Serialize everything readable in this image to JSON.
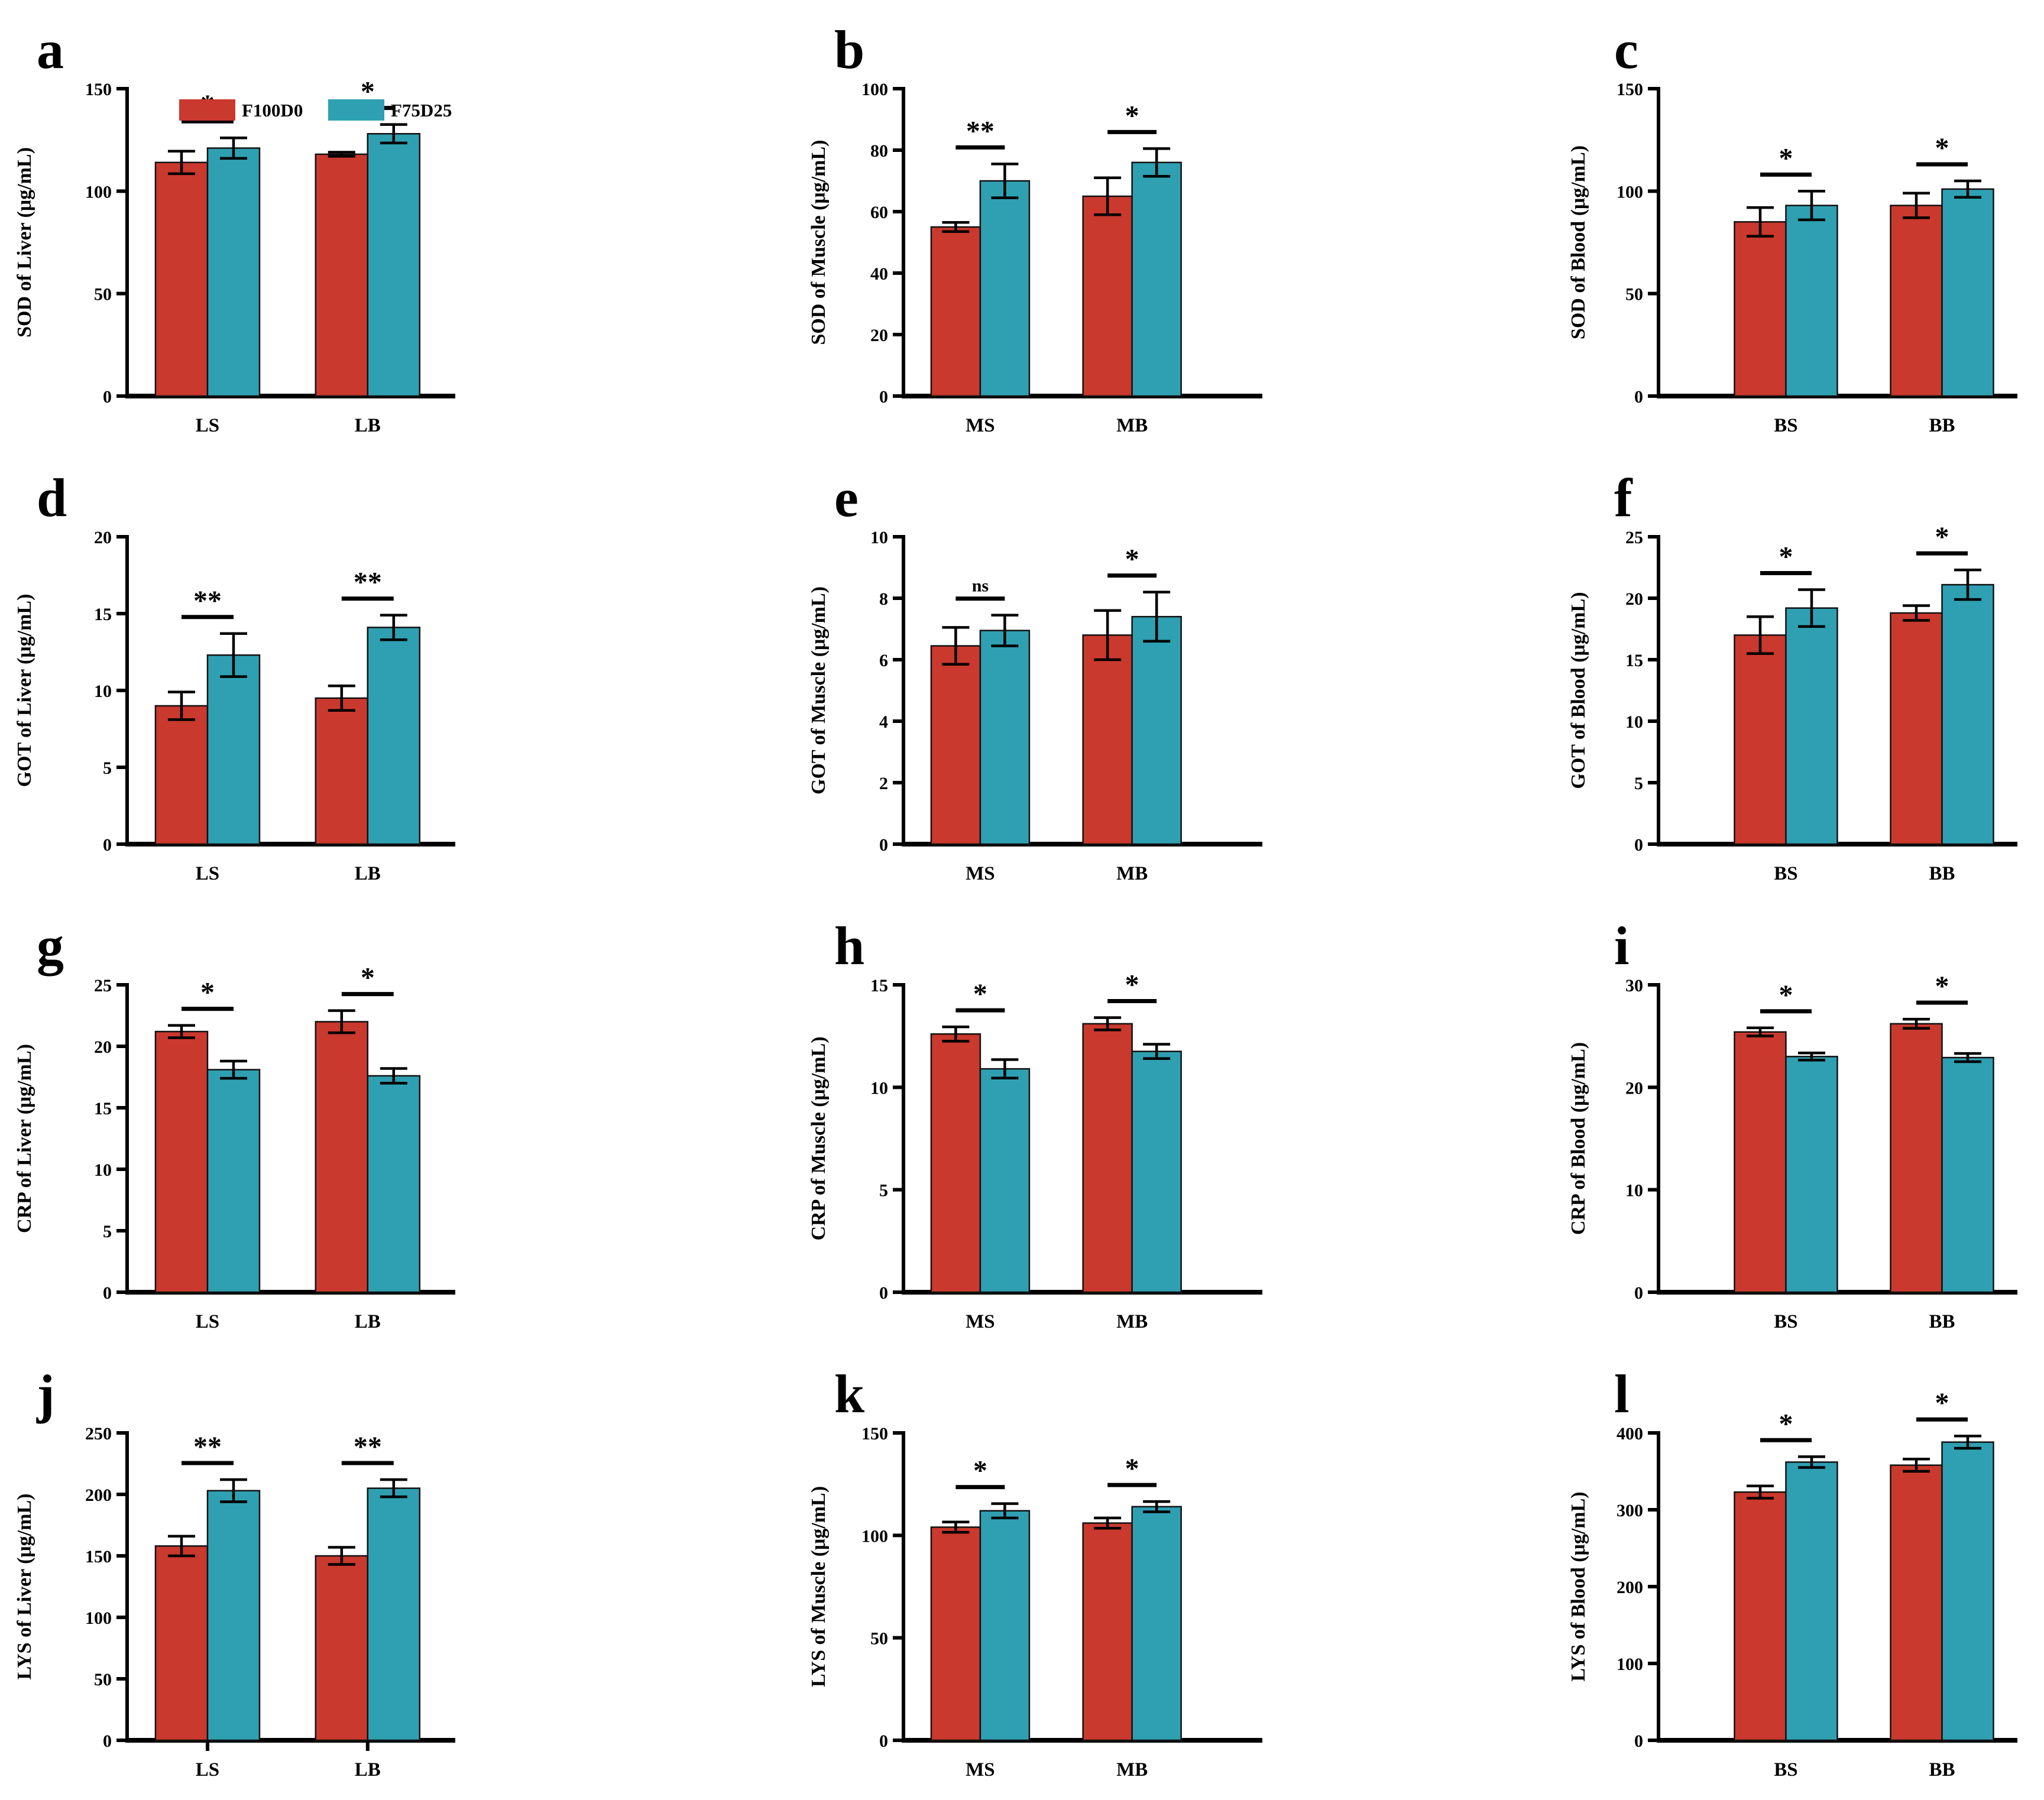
{
  "figure_title": "",
  "legend": {
    "entries": [
      {
        "label": "F100D0",
        "color": "#CA392D"
      },
      {
        "label": "F75D25",
        "color": "#2FA0B2"
      }
    ]
  },
  "colors": {
    "bar_red": "#CA392D",
    "bar_teal": "#2FA0B2",
    "axis": "#000000"
  },
  "chart_data": [
    {
      "panel": "a",
      "type": "bar",
      "ylabel": "SOD of Liver (μg/mL)",
      "ylim": [
        0,
        150
      ],
      "yticks": [
        0,
        50,
        100,
        150
      ],
      "categories": [
        "LS",
        "LB"
      ],
      "legend": true,
      "category_axis_ticks": false,
      "series": [
        {
          "name": "F100D0",
          "color": "#CA392D",
          "values": [
            114,
            118
          ],
          "errors": [
            5.5,
            1
          ]
        },
        {
          "name": "F75D25",
          "color": "#2FA0B2",
          "values": [
            121,
            128
          ],
          "errors": [
            5,
            4.5
          ]
        }
      ],
      "significance": [
        "*",
        "*"
      ]
    },
    {
      "panel": "b",
      "type": "bar",
      "ylabel": "SOD of Muscle (μg/mL)",
      "ylim": [
        0,
        100
      ],
      "yticks": [
        0,
        20,
        40,
        60,
        80,
        100
      ],
      "categories": [
        "MS",
        "MB"
      ],
      "legend": false,
      "category_axis_ticks": false,
      "series": [
        {
          "name": "F100D0",
          "color": "#CA392D",
          "values": [
            55,
            65
          ],
          "errors": [
            1.5,
            6
          ]
        },
        {
          "name": "F75D25",
          "color": "#2FA0B2",
          "values": [
            70,
            76
          ],
          "errors": [
            5.5,
            4.5
          ]
        }
      ],
      "significance": [
        "**",
        "*"
      ]
    },
    {
      "panel": "c",
      "type": "bar",
      "ylabel": "SOD of Blood (μg/mL)",
      "ylim": [
        0,
        150
      ],
      "yticks": [
        0,
        50,
        100,
        150
      ],
      "categories": [
        "BS",
        "BB"
      ],
      "legend": false,
      "category_axis_ticks": false,
      "series": [
        {
          "name": "F100D0",
          "color": "#CA392D",
          "values": [
            85,
            93
          ],
          "errors": [
            7,
            6
          ]
        },
        {
          "name": "F75D25",
          "color": "#2FA0B2",
          "values": [
            93,
            101
          ],
          "errors": [
            7,
            4
          ]
        }
      ],
      "significance": [
        "*",
        "*"
      ]
    },
    {
      "panel": "d",
      "type": "bar",
      "ylabel": "GOT of Liver (μg/mL)",
      "ylim": [
        0,
        20
      ],
      "yticks": [
        0,
        5,
        10,
        15,
        20
      ],
      "categories": [
        "LS",
        "LB"
      ],
      "legend": false,
      "category_axis_ticks": false,
      "series": [
        {
          "name": "F100D0",
          "color": "#CA392D",
          "values": [
            9,
            9.5
          ],
          "errors": [
            0.9,
            0.8
          ]
        },
        {
          "name": "F75D25",
          "color": "#2FA0B2",
          "values": [
            12.3,
            14.1
          ],
          "errors": [
            1.4,
            0.8
          ]
        }
      ],
      "significance": [
        "**",
        "**"
      ]
    },
    {
      "panel": "e",
      "type": "bar",
      "ylabel": "GOT of Muscle (μg/mL)",
      "ylim": [
        0,
        10
      ],
      "yticks": [
        0,
        2,
        4,
        6,
        8,
        10
      ],
      "categories": [
        "MS",
        "MB"
      ],
      "legend": false,
      "category_axis_ticks": false,
      "series": [
        {
          "name": "F100D0",
          "color": "#CA392D",
          "values": [
            6.45,
            6.8
          ],
          "errors": [
            0.6,
            0.8
          ]
        },
        {
          "name": "F75D25",
          "color": "#2FA0B2",
          "values": [
            6.95,
            7.4
          ],
          "errors": [
            0.5,
            0.8
          ]
        }
      ],
      "significance": [
        "ns",
        "*"
      ]
    },
    {
      "panel": "f",
      "type": "bar",
      "ylabel": "GOT of Blood (μg/mL)",
      "ylim": [
        0,
        25
      ],
      "yticks": [
        0,
        5,
        10,
        15,
        20,
        25
      ],
      "categories": [
        "BS",
        "BB"
      ],
      "legend": false,
      "category_axis_ticks": false,
      "series": [
        {
          "name": "F100D0",
          "color": "#CA392D",
          "values": [
            17,
            18.8
          ],
          "errors": [
            1.5,
            0.6
          ]
        },
        {
          "name": "F75D25",
          "color": "#2FA0B2",
          "values": [
            19.2,
            21.1
          ],
          "errors": [
            1.5,
            1.2
          ]
        }
      ],
      "significance": [
        "*",
        "*"
      ]
    },
    {
      "panel": "g",
      "type": "bar",
      "ylabel": "CRP of Liver (μg/mL)",
      "ylim": [
        0,
        25
      ],
      "yticks": [
        0,
        5,
        10,
        15,
        20,
        25
      ],
      "categories": [
        "LS",
        "LB"
      ],
      "legend": false,
      "category_axis_ticks": false,
      "series": [
        {
          "name": "F100D0",
          "color": "#CA392D",
          "values": [
            21.2,
            22
          ],
          "errors": [
            0.5,
            0.9
          ]
        },
        {
          "name": "F75D25",
          "color": "#2FA0B2",
          "values": [
            18.1,
            17.6
          ],
          "errors": [
            0.7,
            0.6
          ]
        }
      ],
      "significance": [
        "*",
        "*"
      ]
    },
    {
      "panel": "h",
      "type": "bar",
      "ylabel": "CRP of Muscle (μg/mL)",
      "ylim": [
        0,
        15
      ],
      "yticks": [
        0,
        5,
        10,
        15
      ],
      "categories": [
        "MS",
        "MB"
      ],
      "legend": false,
      "category_axis_ticks": false,
      "series": [
        {
          "name": "F100D0",
          "color": "#CA392D",
          "values": [
            12.6,
            13.1
          ],
          "errors": [
            0.35,
            0.3
          ]
        },
        {
          "name": "F75D25",
          "color": "#2FA0B2",
          "values": [
            10.9,
            11.75
          ],
          "errors": [
            0.45,
            0.35
          ]
        }
      ],
      "significance": [
        "*",
        "*"
      ]
    },
    {
      "panel": "i",
      "type": "bar",
      "ylabel": "CRP of Blood (μg/mL)",
      "ylim": [
        0,
        30
      ],
      "yticks": [
        0,
        10,
        20,
        30
      ],
      "categories": [
        "BS",
        "BB"
      ],
      "legend": false,
      "category_axis_ticks": false,
      "series": [
        {
          "name": "F100D0",
          "color": "#CA392D",
          "values": [
            25.4,
            26.2
          ],
          "errors": [
            0.4,
            0.45
          ]
        },
        {
          "name": "F75D25",
          "color": "#2FA0B2",
          "values": [
            23,
            22.9
          ],
          "errors": [
            0.35,
            0.4
          ]
        }
      ],
      "significance": [
        "*",
        "*"
      ]
    },
    {
      "panel": "j",
      "type": "bar",
      "ylabel": "LYS of Liver (μg/mL)",
      "ylim": [
        0,
        250
      ],
      "yticks": [
        0,
        50,
        100,
        150,
        200,
        250
      ],
      "categories": [
        "LS",
        "LB"
      ],
      "legend": false,
      "category_axis_ticks": true,
      "series": [
        {
          "name": "F100D0",
          "color": "#CA392D",
          "values": [
            158,
            150
          ],
          "errors": [
            8,
            7
          ]
        },
        {
          "name": "F75D25",
          "color": "#2FA0B2",
          "values": [
            203,
            205
          ],
          "errors": [
            9,
            7
          ]
        }
      ],
      "significance": [
        "**",
        "**"
      ]
    },
    {
      "panel": "k",
      "type": "bar",
      "ylabel": "LYS of Muscle (μg/mL)",
      "ylim": [
        0,
        150
      ],
      "yticks": [
        0,
        50,
        100,
        150
      ],
      "categories": [
        "MS",
        "MB"
      ],
      "legend": false,
      "category_axis_ticks": false,
      "series": [
        {
          "name": "F100D0",
          "color": "#CA392D",
          "values": [
            104,
            106
          ],
          "errors": [
            2.5,
            2.5
          ]
        },
        {
          "name": "F75D25",
          "color": "#2FA0B2",
          "values": [
            112,
            114
          ],
          "errors": [
            3.5,
            2.5
          ]
        }
      ],
      "significance": [
        "*",
        "*"
      ]
    },
    {
      "panel": "l",
      "type": "bar",
      "ylabel": "LYS of Blood (μg/mL)",
      "ylim": [
        0,
        400
      ],
      "yticks": [
        0,
        100,
        200,
        300,
        400
      ],
      "categories": [
        "BS",
        "BB"
      ],
      "legend": false,
      "category_axis_ticks": false,
      "series": [
        {
          "name": "F100D0",
          "color": "#CA392D",
          "values": [
            323,
            358
          ],
          "errors": [
            8,
            8
          ]
        },
        {
          "name": "F75D25",
          "color": "#2FA0B2",
          "values": [
            362,
            388
          ],
          "errors": [
            7,
            8
          ]
        }
      ],
      "significance": [
        "*",
        "*"
      ]
    }
  ]
}
